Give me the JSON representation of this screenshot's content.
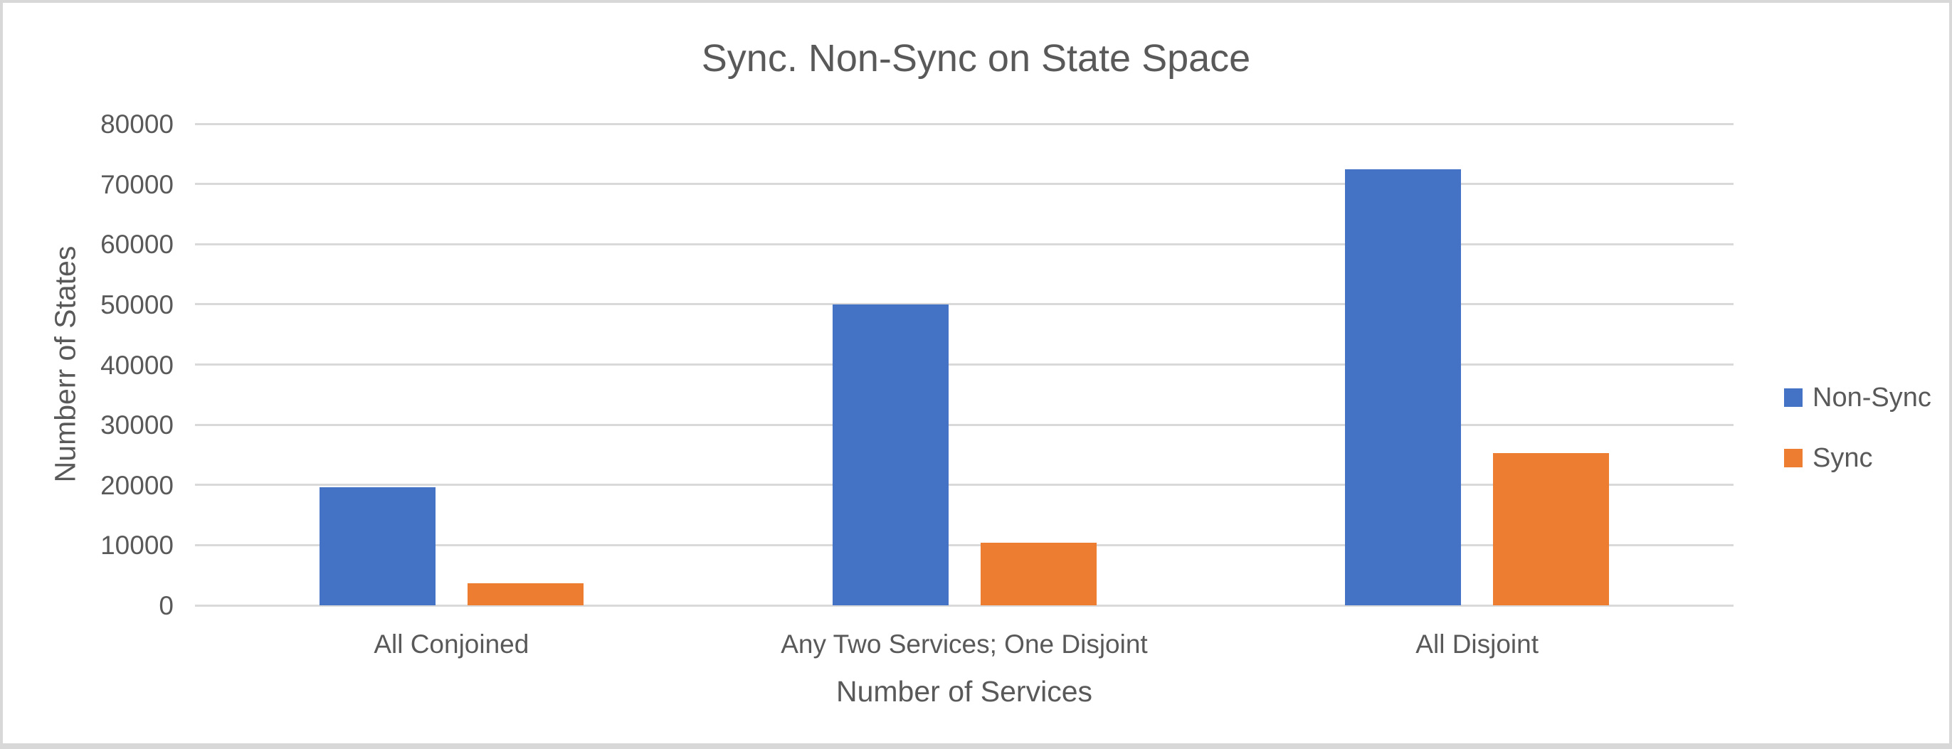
{
  "window": {
    "background": "#ffffff",
    "frame_border_color": "#d8d8d8",
    "text_color": "#595959",
    "gridline_color": "#d9d9d9"
  },
  "chart_data": {
    "type": "bar",
    "title": "Sync. Non-Sync on State Space",
    "xlabel": "Number of Services",
    "ylabel": "Numberr of States",
    "categories": [
      "All Conjoined",
      "Any Two Services; One Disjoint",
      "All Disjoint"
    ],
    "series": [
      {
        "name": "Non-Sync",
        "color": "#4472C4",
        "values": [
          19600,
          50000,
          72400
        ]
      },
      {
        "name": "Sync",
        "color": "#ED7D31",
        "values": [
          3700,
          10400,
          25300
        ]
      }
    ],
    "ylim": [
      0,
      80000
    ],
    "yticks": [
      0,
      10000,
      20000,
      30000,
      40000,
      50000,
      60000,
      70000,
      80000
    ],
    "grid": true,
    "legend_position": "right"
  }
}
